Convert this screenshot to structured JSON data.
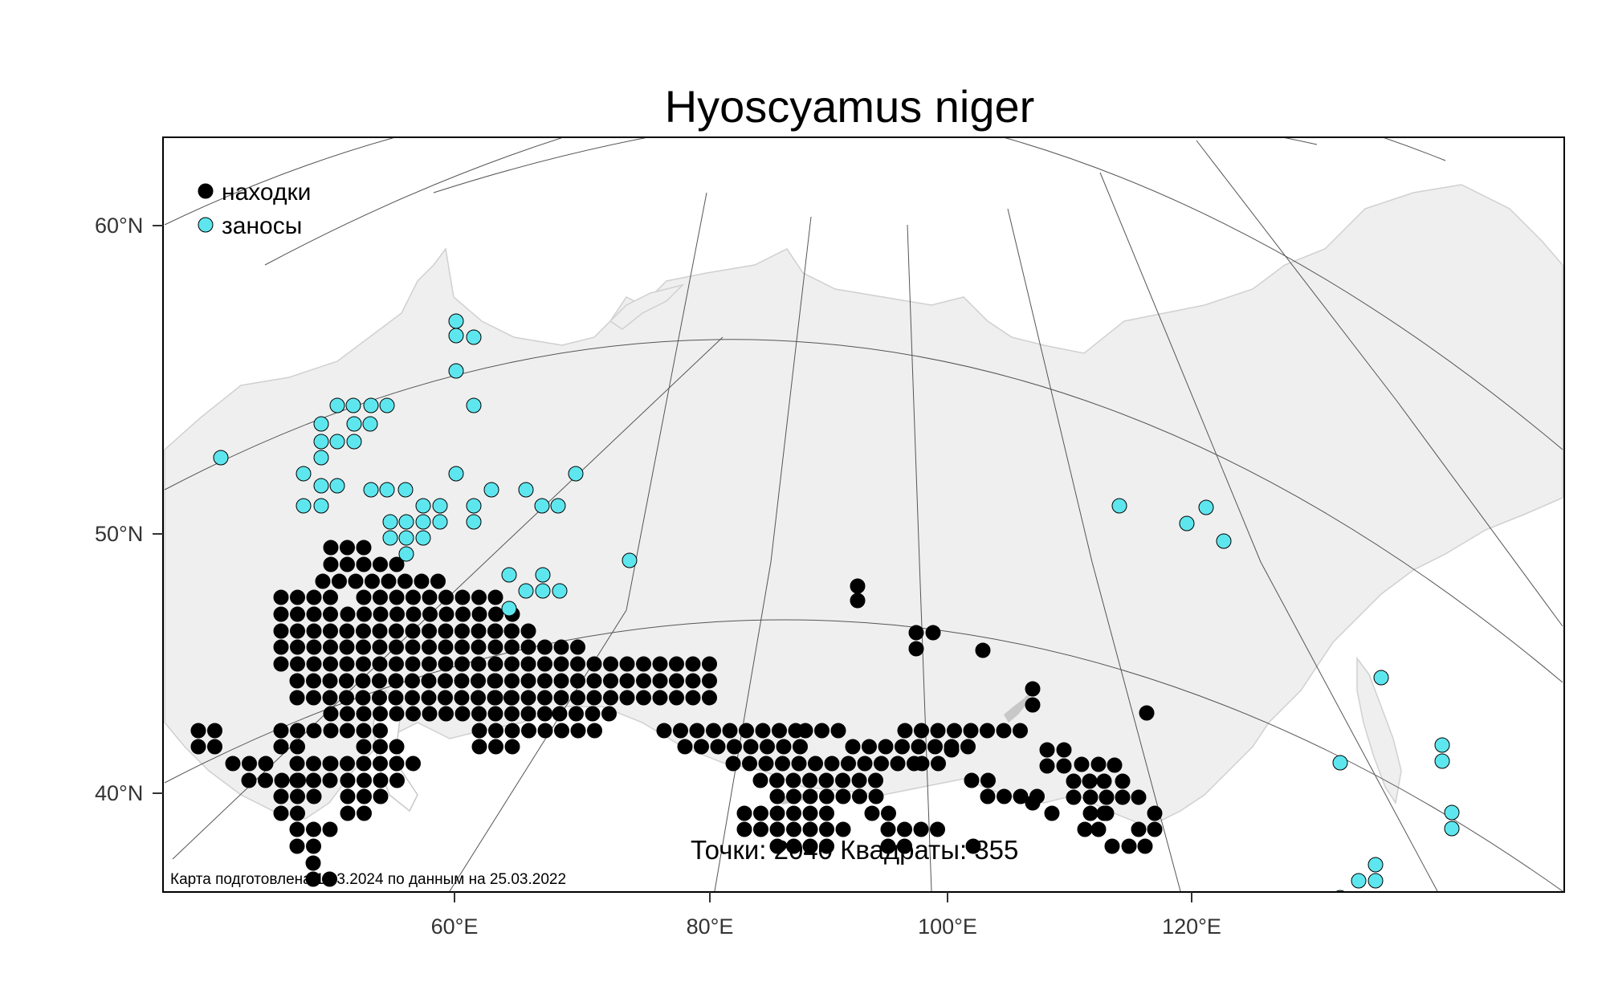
{
  "title": "Hyoscyamus niger",
  "legend": {
    "found_label": "находки",
    "introduced_label": "заносы",
    "found_color": "#000000",
    "introduced_color": "#5ee6ee"
  },
  "stats_text": "Точки: 2040 Квадраты: 355",
  "caption": "Карта подготовлена 14.3.2024 по данным на 25.03.2022",
  "axis_labels": {
    "lat_60": "60°N",
    "lat_50": "50°N",
    "lat_40": "40°N",
    "lon_60": "60°E",
    "lon_80": "80°E",
    "lon_100": "100°E",
    "lon_120": "120°E"
  },
  "colors": {
    "land": "#efefef",
    "graticule": "#555555",
    "frame": "#000000"
  }
}
